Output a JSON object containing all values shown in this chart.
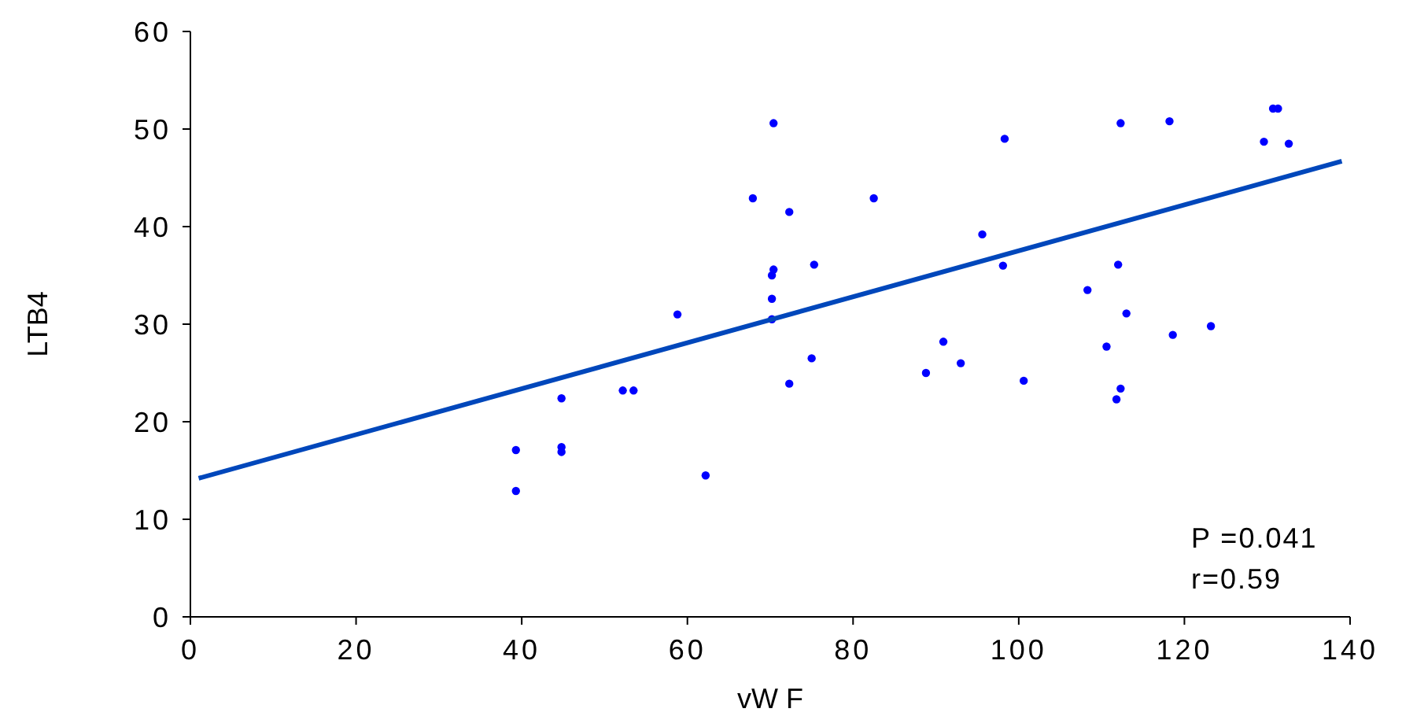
{
  "chart_data": {
    "type": "scatter",
    "xlabel": "vW F",
    "ylabel": "LTB4",
    "xlim": [
      0,
      140
    ],
    "xticks": [
      0,
      20,
      40,
      60,
      80,
      100,
      120,
      140
    ],
    "ylim": [
      0,
      60
    ],
    "yticks": [
      0,
      10,
      20,
      30,
      40,
      50,
      60
    ],
    "grid": false,
    "series": [
      {
        "marker": "circle",
        "color": "#0000ff",
        "x": [
          39.3,
          39.3,
          44.8,
          44.8,
          44.8,
          52.2,
          53.5,
          58.8,
          62.2,
          67.9,
          70.4,
          70.2,
          70.2,
          70.2,
          70.4,
          72.3,
          72.3,
          75,
          75.3,
          82.5,
          88.8,
          90.9,
          93,
          95.6,
          98.3,
          98.1,
          100.6,
          108.3,
          110.6,
          112.3,
          112,
          113,
          111.8,
          112.3,
          118.2,
          118.6,
          123.2,
          129.6,
          130.7,
          131.3,
          132.6
        ],
        "values": [
          17.1,
          12.9,
          22.4,
          17.4,
          16.9,
          23.2,
          23.2,
          31,
          14.5,
          42.9,
          50.6,
          32.6,
          30.5,
          35,
          35.6,
          41.5,
          23.9,
          26.5,
          36.1,
          42.9,
          25,
          28.2,
          26,
          39.2,
          49,
          36,
          24.2,
          33.5,
          27.7,
          50.6,
          36.1,
          31.1,
          22.3,
          23.4,
          50.8,
          28.9,
          29.8,
          48.7,
          52.1,
          52.1,
          48.5
        ]
      },
      {
        "type": "line",
        "color": "#0047bb",
        "line_style": "solid",
        "x": [
          1,
          139
        ],
        "values": [
          14.2,
          46.7
        ]
      }
    ],
    "annotations": [
      "P =0.041",
      "r=0.59"
    ]
  }
}
